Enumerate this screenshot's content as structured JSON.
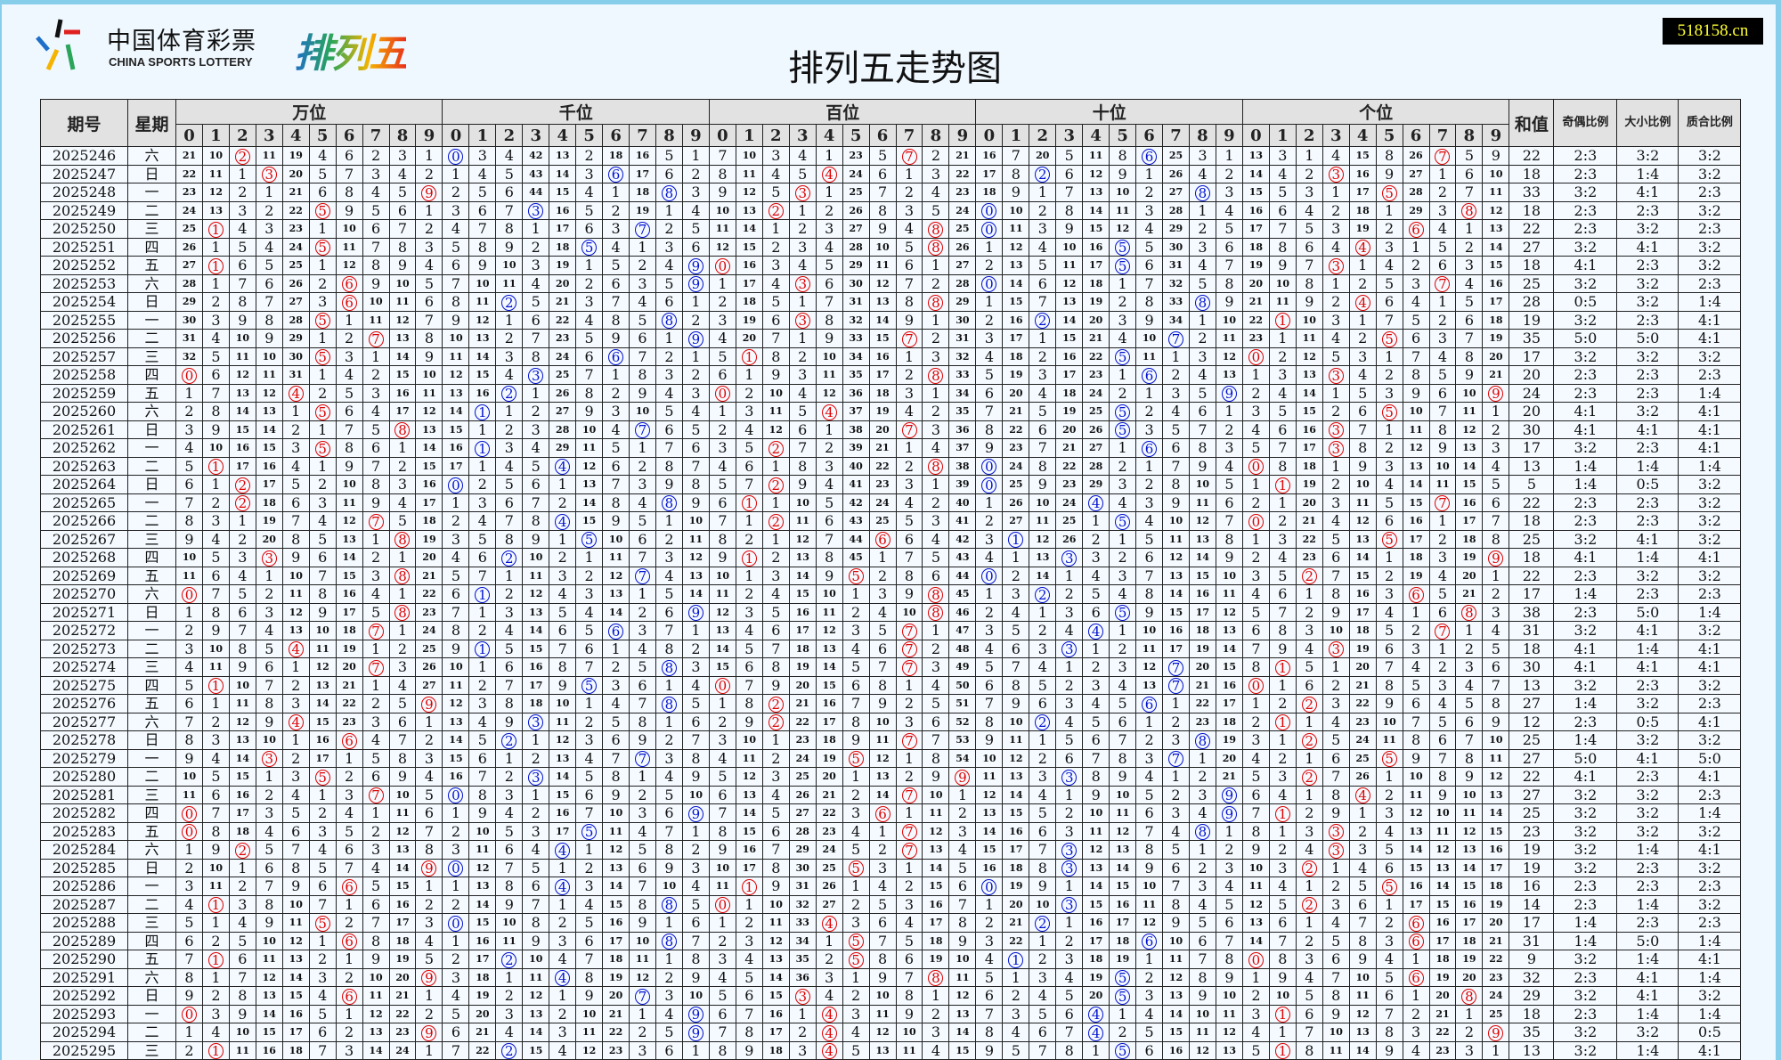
{
  "logo": {
    "cn": "中国体育彩票",
    "en": "CHINA SPORTS LOTTERY",
    "game": "排列五"
  },
  "title": "排列五走势图",
  "badge": "518158.cn",
  "colors": {
    "red": "#e00000",
    "blue": "#0010d0",
    "header_bg": "#e2e2e2",
    "page_bg": "#f0f8ff",
    "frame": "#87ceeb",
    "badge_bg": "#000000",
    "badge_text": "#ffff33"
  },
  "header": {
    "period": "期号",
    "weekday": "星期",
    "positions": [
      {
        "label": "万位",
        "circle_color": "red"
      },
      {
        "label": "千位",
        "circle_color": "blue"
      },
      {
        "label": "百位",
        "circle_color": "red"
      },
      {
        "label": "十位",
        "circle_color": "blue"
      },
      {
        "label": "个位",
        "circle_color": "red"
      }
    ],
    "digits": [
      "0",
      "1",
      "2",
      "3",
      "4",
      "5",
      "6",
      "7",
      "8",
      "9"
    ],
    "sum": "和值",
    "odd_even": "奇偶比例",
    "big_small": "大小比例",
    "prime_composite": "质合比例"
  },
  "rows": [
    {
      "period": "2025246",
      "weekday": "六",
      "draw": [
        2,
        0,
        7,
        6,
        7
      ],
      "sum": "22",
      "odd_even": "2:3",
      "big_small": "3:2",
      "prime_composite": "3:2",
      "omission": [
        [
          21,
          10,
          0,
          11,
          19,
          4,
          6,
          2,
          3,
          1
        ],
        [
          0,
          3,
          4,
          42,
          13,
          2,
          18,
          16,
          5,
          1
        ],
        [
          7,
          10,
          3,
          4,
          1,
          23,
          5,
          0,
          2,
          21
        ],
        [
          16,
          7,
          20,
          5,
          11,
          8,
          0,
          25,
          3,
          1
        ],
        [
          13,
          3,
          1,
          4,
          15,
          8,
          26,
          0,
          5,
          9
        ]
      ]
    },
    {
      "period": "2025247",
      "weekday": "日",
      "draw": [
        3,
        6,
        4,
        2,
        3
      ],
      "sum": "18",
      "odd_even": "2:3",
      "big_small": "1:4",
      "prime_composite": "3:2"
    },
    {
      "period": "2025248",
      "weekday": "一",
      "draw": [
        9,
        8,
        3,
        8,
        5
      ],
      "sum": "33",
      "odd_even": "3:2",
      "big_small": "4:1",
      "prime_composite": "2:3"
    },
    {
      "period": "2025249",
      "weekday": "二",
      "draw": [
        5,
        3,
        2,
        0,
        8
      ],
      "sum": "18",
      "odd_even": "2:3",
      "big_small": "2:3",
      "prime_composite": "3:2"
    },
    {
      "period": "2025250",
      "weekday": "三",
      "draw": [
        1,
        7,
        8,
        0,
        6
      ],
      "sum": "22",
      "odd_even": "2:3",
      "big_small": "3:2",
      "prime_composite": "2:3"
    },
    {
      "period": "2025251",
      "weekday": "四",
      "draw": [
        5,
        5,
        8,
        5,
        4
      ],
      "sum": "27",
      "odd_even": "3:2",
      "big_small": "4:1",
      "prime_composite": "3:2"
    },
    {
      "period": "2025252",
      "weekday": "五",
      "draw": [
        1,
        9,
        0,
        5,
        3
      ],
      "sum": "18",
      "odd_even": "4:1",
      "big_small": "2:3",
      "prime_composite": "3:2"
    },
    {
      "period": "2025253",
      "weekday": "六",
      "draw": [
        6,
        9,
        3,
        0,
        7
      ],
      "sum": "25",
      "odd_even": "3:2",
      "big_small": "3:2",
      "prime_composite": "2:3"
    },
    {
      "period": "2025254",
      "weekday": "日",
      "draw": [
        6,
        2,
        8,
        8,
        4
      ],
      "sum": "28",
      "odd_even": "0:5",
      "big_small": "3:2",
      "prime_composite": "1:4"
    },
    {
      "period": "2025255",
      "weekday": "一",
      "draw": [
        5,
        8,
        3,
        2,
        1
      ],
      "sum": "19",
      "odd_even": "3:2",
      "big_small": "2:3",
      "prime_composite": "4:1"
    },
    {
      "period": "2025256",
      "weekday": "二",
      "draw": [
        7,
        9,
        7,
        7,
        5
      ],
      "sum": "35",
      "odd_even": "5:0",
      "big_small": "5:0",
      "prime_composite": "4:1"
    },
    {
      "period": "2025257",
      "weekday": "三",
      "draw": [
        5,
        6,
        1,
        5,
        0
      ],
      "sum": "17",
      "odd_even": "3:2",
      "big_small": "3:2",
      "prime_composite": "3:2"
    },
    {
      "period": "2025258",
      "weekday": "四",
      "draw": [
        0,
        3,
        8,
        6,
        3
      ],
      "sum": "20",
      "odd_even": "2:3",
      "big_small": "2:3",
      "prime_composite": "2:3"
    },
    {
      "period": "2025259",
      "weekday": "五",
      "draw": [
        4,
        2,
        0,
        9,
        9
      ],
      "sum": "24",
      "odd_even": "2:3",
      "big_small": "2:3",
      "prime_composite": "1:4"
    },
    {
      "period": "2025260",
      "weekday": "六",
      "draw": [
        5,
        1,
        4,
        5,
        5
      ],
      "sum": "20",
      "odd_even": "4:1",
      "big_small": "3:2",
      "prime_composite": "4:1"
    },
    {
      "period": "2025261",
      "weekday": "日",
      "draw": [
        8,
        7,
        7,
        5,
        3
      ],
      "sum": "30",
      "odd_even": "4:1",
      "big_small": "4:1",
      "prime_composite": "4:1"
    },
    {
      "period": "2025262",
      "weekday": "一",
      "draw": [
        5,
        1,
        2,
        6,
        3
      ],
      "sum": "17",
      "odd_even": "3:2",
      "big_small": "2:3",
      "prime_composite": "4:1"
    },
    {
      "period": "2025263",
      "weekday": "二",
      "draw": [
        1,
        4,
        8,
        0,
        0
      ],
      "sum": "13",
      "odd_even": "1:4",
      "big_small": "1:4",
      "prime_composite": "1:4"
    },
    {
      "period": "2025264",
      "weekday": "日",
      "draw": [
        2,
        0,
        2,
        0,
        1
      ],
      "sum": "5",
      "odd_even": "1:4",
      "big_small": "0:5",
      "prime_composite": "3:2"
    },
    {
      "period": "2025265",
      "weekday": "一",
      "draw": [
        2,
        8,
        1,
        4,
        7
      ],
      "sum": "22",
      "odd_even": "2:3",
      "big_small": "2:3",
      "prime_composite": "3:2"
    },
    {
      "period": "2025266",
      "weekday": "二",
      "draw": [
        7,
        4,
        2,
        5,
        0
      ],
      "sum": "18",
      "odd_even": "2:3",
      "big_small": "2:3",
      "prime_composite": "3:2"
    },
    {
      "period": "2025267",
      "weekday": "三",
      "draw": [
        8,
        5,
        6,
        1,
        5
      ],
      "sum": "25",
      "odd_even": "3:2",
      "big_small": "4:1",
      "prime_composite": "3:2"
    },
    {
      "period": "2025268",
      "weekday": "四",
      "draw": [
        3,
        2,
        1,
        3,
        9
      ],
      "sum": "18",
      "odd_even": "4:1",
      "big_small": "1:4",
      "prime_composite": "4:1"
    },
    {
      "period": "2025269",
      "weekday": "五",
      "draw": [
        8,
        7,
        5,
        0,
        2
      ],
      "sum": "22",
      "odd_even": "2:3",
      "big_small": "3:2",
      "prime_composite": "3:2"
    },
    {
      "period": "2025270",
      "weekday": "六",
      "draw": [
        0,
        1,
        8,
        2,
        6
      ],
      "sum": "17",
      "odd_even": "1:4",
      "big_small": "2:3",
      "prime_composite": "2:3"
    },
    {
      "period": "2025271",
      "weekday": "日",
      "draw": [
        8,
        9,
        8,
        5,
        8
      ],
      "sum": "38",
      "odd_even": "2:3",
      "big_small": "5:0",
      "prime_composite": "1:4"
    },
    {
      "period": "2025272",
      "weekday": "一",
      "draw": [
        7,
        6,
        7,
        4,
        7
      ],
      "sum": "31",
      "odd_even": "3:2",
      "big_small": "4:1",
      "prime_composite": "3:2"
    },
    {
      "period": "2025273",
      "weekday": "二",
      "draw": [
        4,
        1,
        7,
        3,
        3
      ],
      "sum": "18",
      "odd_even": "4:1",
      "big_small": "1:4",
      "prime_composite": "4:1"
    },
    {
      "period": "2025274",
      "weekday": "三",
      "draw": [
        7,
        8,
        7,
        7,
        1
      ],
      "sum": "30",
      "odd_even": "4:1",
      "big_small": "4:1",
      "prime_composite": "4:1"
    },
    {
      "period": "2025275",
      "weekday": "四",
      "draw": [
        1,
        5,
        0,
        7,
        0
      ],
      "sum": "13",
      "odd_even": "3:2",
      "big_small": "2:3",
      "prime_composite": "3:2"
    },
    {
      "period": "2025276",
      "weekday": "五",
      "draw": [
        9,
        8,
        2,
        6,
        2
      ],
      "sum": "27",
      "odd_even": "1:4",
      "big_small": "3:2",
      "prime_composite": "2:3"
    },
    {
      "period": "2025277",
      "weekday": "六",
      "draw": [
        4,
        3,
        2,
        2,
        1
      ],
      "sum": "12",
      "odd_even": "2:3",
      "big_small": "0:5",
      "prime_composite": "4:1"
    },
    {
      "period": "2025278",
      "weekday": "日",
      "draw": [
        6,
        2,
        7,
        8,
        2
      ],
      "sum": "25",
      "odd_even": "1:4",
      "big_small": "3:2",
      "prime_composite": "3:2"
    },
    {
      "period": "2025279",
      "weekday": "一",
      "draw": [
        3,
        7,
        5,
        7,
        5
      ],
      "sum": "27",
      "odd_even": "5:0",
      "big_small": "4:1",
      "prime_composite": "5:0"
    },
    {
      "period": "2025280",
      "weekday": "二",
      "draw": [
        5,
        3,
        9,
        3,
        2
      ],
      "sum": "22",
      "odd_even": "4:1",
      "big_small": "2:3",
      "prime_composite": "4:1"
    },
    {
      "period": "2025281",
      "weekday": "三",
      "draw": [
        7,
        0,
        7,
        9,
        4
      ],
      "sum": "27",
      "odd_even": "3:2",
      "big_small": "3:2",
      "prime_composite": "2:3"
    },
    {
      "period": "2025282",
      "weekday": "四",
      "draw": [
        0,
        9,
        6,
        9,
        1
      ],
      "sum": "25",
      "odd_even": "3:2",
      "big_small": "3:2",
      "prime_composite": "1:4"
    },
    {
      "period": "2025283",
      "weekday": "五",
      "draw": [
        0,
        5,
        7,
        8,
        3
      ],
      "sum": "23",
      "odd_even": "3:2",
      "big_small": "3:2",
      "prime_composite": "3:2"
    },
    {
      "period": "2025284",
      "weekday": "六",
      "draw": [
        2,
        4,
        7,
        3,
        3
      ],
      "sum": "19",
      "odd_even": "3:2",
      "big_small": "1:4",
      "prime_composite": "4:1"
    },
    {
      "period": "2025285",
      "weekday": "日",
      "draw": [
        9,
        0,
        5,
        3,
        2
      ],
      "sum": "19",
      "odd_even": "3:2",
      "big_small": "2:3",
      "prime_composite": "3:2"
    },
    {
      "period": "2025286",
      "weekday": "一",
      "draw": [
        6,
        4,
        1,
        0,
        5
      ],
      "sum": "16",
      "odd_even": "2:3",
      "big_small": "2:3",
      "prime_composite": "2:3"
    },
    {
      "period": "2025287",
      "weekday": "二",
      "draw": [
        1,
        8,
        0,
        3,
        2
      ],
      "sum": "14",
      "odd_even": "2:3",
      "big_small": "1:4",
      "prime_composite": "3:2"
    },
    {
      "period": "2025288",
      "weekday": "三",
      "draw": [
        5,
        0,
        4,
        2,
        6
      ],
      "sum": "17",
      "odd_even": "1:4",
      "big_small": "2:3",
      "prime_composite": "2:3"
    },
    {
      "period": "2025289",
      "weekday": "四",
      "draw": [
        6,
        8,
        5,
        6,
        6
      ],
      "sum": "31",
      "odd_even": "1:4",
      "big_small": "5:0",
      "prime_composite": "1:4"
    },
    {
      "period": "2025290",
      "weekday": "五",
      "draw": [
        1,
        2,
        5,
        1,
        0
      ],
      "sum": "9",
      "odd_even": "3:2",
      "big_small": "1:4",
      "prime_composite": "4:1"
    },
    {
      "period": "2025291",
      "weekday": "六",
      "draw": [
        9,
        4,
        8,
        5,
        6
      ],
      "sum": "32",
      "odd_even": "2:3",
      "big_small": "4:1",
      "prime_composite": "1:4"
    },
    {
      "period": "2025292",
      "weekday": "日",
      "draw": [
        6,
        7,
        3,
        5,
        8
      ],
      "sum": "29",
      "odd_even": "3:2",
      "big_small": "4:1",
      "prime_composite": "3:2"
    },
    {
      "period": "2025293",
      "weekday": "一",
      "draw": [
        0,
        9,
        4,
        4,
        1
      ],
      "sum": "18",
      "odd_even": "2:3",
      "big_small": "1:4",
      "prime_composite": "1:4"
    },
    {
      "period": "2025294",
      "weekday": "二",
      "draw": [
        9,
        9,
        4,
        4,
        9
      ],
      "sum": "35",
      "odd_even": "3:2",
      "big_small": "3:2",
      "prime_composite": "0:5"
    },
    {
      "period": "2025295",
      "weekday": "三",
      "draw": [
        1,
        2,
        4,
        5,
        1
      ],
      "sum": "13",
      "odd_even": "3:2",
      "big_small": "1:4",
      "prime_composite": "4:1"
    }
  ]
}
